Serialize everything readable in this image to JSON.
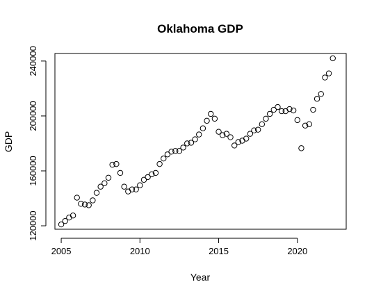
{
  "chart_data": {
    "type": "scatter",
    "title": "Oklahoma GDP",
    "xlabel": "Year",
    "ylabel": "GDP",
    "xlim": [
      2004.6,
      2023.1
    ],
    "ylim": [
      117500,
      245500
    ],
    "xticks": [
      2005,
      2010,
      2015,
      2020
    ],
    "yticks": [
      120000,
      160000,
      200000,
      240000
    ],
    "grid": false,
    "point_style": "open-circle",
    "x": [
      2005.0,
      2005.25,
      2005.5,
      2005.75,
      2006.0,
      2006.25,
      2006.5,
      2006.75,
      2007.0,
      2007.25,
      2007.5,
      2007.75,
      2008.0,
      2008.25,
      2008.5,
      2008.75,
      2009.0,
      2009.25,
      2009.5,
      2009.75,
      2010.0,
      2010.25,
      2010.5,
      2010.75,
      2011.0,
      2011.25,
      2011.5,
      2011.75,
      2012.0,
      2012.25,
      2012.5,
      2012.75,
      2013.0,
      2013.25,
      2013.5,
      2013.75,
      2014.0,
      2014.25,
      2014.5,
      2014.75,
      2015.0,
      2015.25,
      2015.5,
      2015.75,
      2016.0,
      2016.25,
      2016.5,
      2016.75,
      2017.0,
      2017.25,
      2017.5,
      2017.75,
      2018.0,
      2018.25,
      2018.5,
      2018.75,
      2019.0,
      2019.25,
      2019.5,
      2019.75,
      2020.0,
      2020.25,
      2020.5,
      2020.75,
      2021.0,
      2021.25,
      2021.5,
      2021.75,
      2022.0,
      2022.25
    ],
    "y": [
      121000,
      123500,
      126000,
      127500,
      140500,
      136000,
      135500,
      135000,
      138500,
      144000,
      148500,
      151000,
      155000,
      164500,
      165000,
      158500,
      148500,
      145000,
      146500,
      146500,
      149500,
      153500,
      155500,
      157500,
      158500,
      165000,
      169000,
      172000,
      174000,
      174500,
      174500,
      177000,
      180000,
      180500,
      183000,
      186500,
      191000,
      196500,
      201500,
      198000,
      188500,
      186000,
      187000,
      184500,
      178500,
      181000,
      182000,
      183500,
      187000,
      189500,
      190000,
      194000,
      198000,
      201500,
      204500,
      206500,
      203500,
      203500,
      205000,
      204000,
      197000,
      176500,
      193000,
      194000,
      204500,
      212500,
      216000,
      228000,
      231000,
      242000
    ]
  }
}
